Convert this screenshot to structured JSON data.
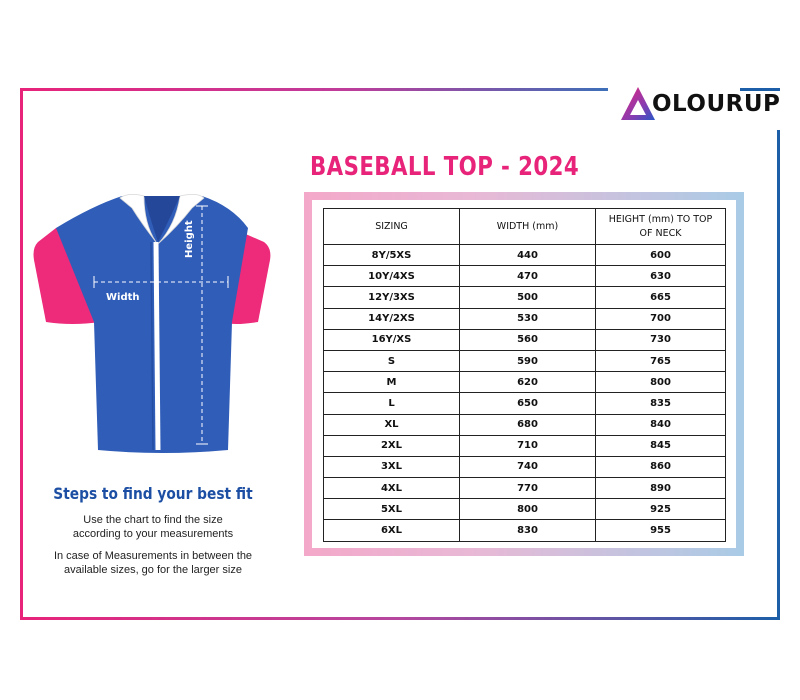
{
  "brand": {
    "name": "COLOURUP",
    "text_rest": "OLOURUP",
    "colors": {
      "pink": "#e8237a",
      "blue": "#1c5fa8",
      "purple": "#6a3fb0"
    }
  },
  "title": "BASEBALL TOP  - 2024",
  "garment": {
    "height_label": "Height",
    "width_label": "Width",
    "colors": {
      "body": "#2f5db8",
      "sleeves": "#ee2a7b",
      "collar": "#ffffff"
    }
  },
  "table": {
    "headers": [
      "SIZING",
      "WIDTH (mm)",
      "HEIGHT (mm) TO TOP OF NECK"
    ],
    "header_height_line1": "HEIGHT (mm) TO TOP",
    "header_height_line2": "OF NECK",
    "rows": [
      [
        "8Y/5XS",
        "440",
        "600"
      ],
      [
        "10Y/4XS",
        "470",
        "630"
      ],
      [
        "12Y/3XS",
        "500",
        "665"
      ],
      [
        "14Y/2XS",
        "530",
        "700"
      ],
      [
        "16Y/XS",
        "560",
        "730"
      ],
      [
        "S",
        "590",
        "765"
      ],
      [
        "M",
        "620",
        "800"
      ],
      [
        "L",
        "650",
        "835"
      ],
      [
        "XL",
        "680",
        "840"
      ],
      [
        "2XL",
        "710",
        "845"
      ],
      [
        "3XL",
        "740",
        "860"
      ],
      [
        "4XL",
        "770",
        "890"
      ],
      [
        "5XL",
        "800",
        "925"
      ],
      [
        "6XL",
        "830",
        "955"
      ]
    ]
  },
  "steps": {
    "title": "Steps to find your best fit",
    "p1_line1": "Use the chart to find the size",
    "p1_line2": "according to your measurements",
    "p2_line1": "In case of Measurements in between the",
    "p2_line2": "available sizes, go for the larger size"
  }
}
